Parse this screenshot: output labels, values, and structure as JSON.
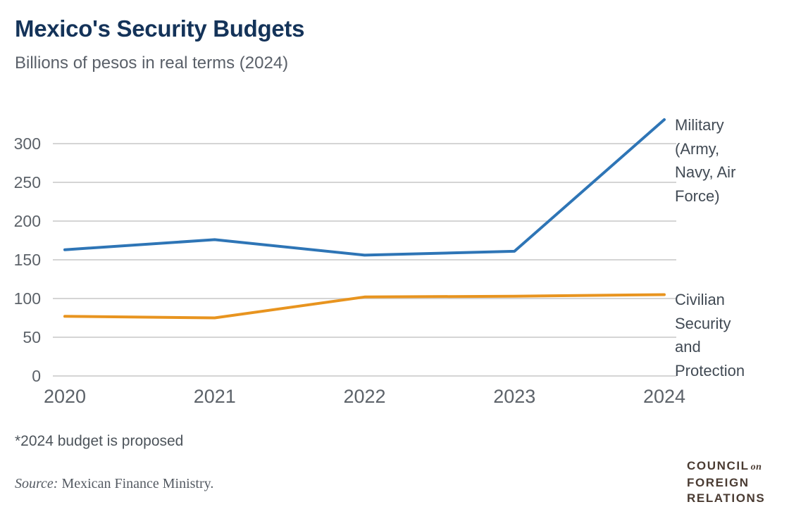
{
  "header": {
    "title": "Mexico's Security Budgets",
    "subtitle": "Billions of pesos in real terms (2024)"
  },
  "chart_data": {
    "type": "line",
    "x": [
      "2020",
      "2021",
      "2022",
      "2023",
      "2024"
    ],
    "series": [
      {
        "name": "Military (Army, Navy, Air Force)",
        "color": "#2e75b6",
        "values": [
          163,
          176,
          156,
          161,
          331
        ]
      },
      {
        "name": "Civilian Security and Protection",
        "color": "#e8941f",
        "values": [
          77,
          75,
          102,
          103,
          105
        ]
      }
    ],
    "yticks": [
      0,
      50,
      100,
      150,
      200,
      250,
      300
    ],
    "ylim": [
      0,
      340
    ],
    "xlabel": "",
    "ylabel": "",
    "grid": "horizontal gridlines only",
    "legend_position": "labels at right end of each line",
    "tick_color": "#5c6269",
    "grid_color": "#d5d5d5",
    "line_width": 4
  },
  "annotations": {
    "footnote": "*2024 budget is proposed",
    "source_label": "Source:",
    "source_text": " Mexican Finance Ministry."
  },
  "logo": {
    "word1": "COUNCIL",
    "word1_suffix": "on",
    "word2": "FOREIGN",
    "word3": "RELATIONS"
  }
}
